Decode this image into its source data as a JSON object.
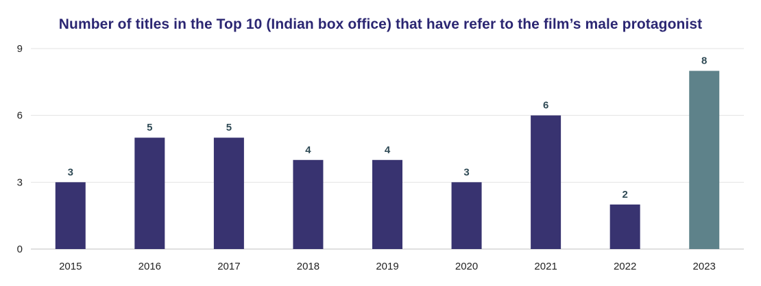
{
  "chart_data": {
    "type": "bar",
    "title": "Number of titles in the Top 10 (Indian box office) that have refer to the film’s male protagonist",
    "xlabel": "",
    "ylabel": "",
    "categories": [
      "2015",
      "2016",
      "2017",
      "2018",
      "2019",
      "2020",
      "2021",
      "2022",
      "2023"
    ],
    "values": [
      3,
      5,
      5,
      4,
      4,
      3,
      6,
      2,
      8
    ],
    "ylim": [
      0,
      9
    ],
    "yticks": [
      "0",
      "3",
      "6",
      "9"
    ],
    "grid": true,
    "data_labels": true,
    "colors": {
      "default_bar": "#383370",
      "highlight_bar": "#5e828a",
      "label_text": "#2f4a55",
      "title": "#2b2672",
      "grid": "#e3e3e3",
      "axis": "#bfbfbf"
    },
    "highlight_category": "2023"
  }
}
